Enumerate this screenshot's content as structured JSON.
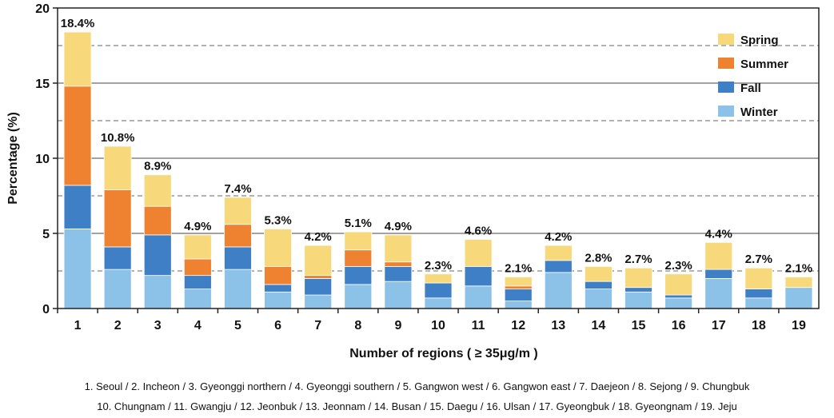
{
  "chart_data": {
    "type": "bar",
    "stacked": true,
    "xlabel": "Number of regions ( ≥ 35μg/m  )",
    "ylabel": "Percentage (%)",
    "ylim": [
      0,
      20
    ],
    "yticks": [
      0,
      5,
      10,
      15,
      20
    ],
    "grid": "horizontal",
    "legend_position": "top-right",
    "categories": [
      "1",
      "2",
      "3",
      "4",
      "5",
      "6",
      "7",
      "8",
      "9",
      "10",
      "11",
      "12",
      "13",
      "14",
      "15",
      "16",
      "17",
      "18",
      "19"
    ],
    "total_labels": [
      "18.4%",
      "10.8%",
      "8.9%",
      "4.9%",
      "7.4%",
      "5.3%",
      "4.2%",
      "5.1%",
      "4.9%",
      "2.3%",
      "4.6%",
      "2.1%",
      "4.2%",
      "2.8%",
      "2.7%",
      "2.3%",
      "4.4%",
      "2.7%",
      "2.1%"
    ],
    "series": [
      {
        "name": "Winter",
        "color": "#8dc2e8",
        "values": [
          5.3,
          2.6,
          2.2,
          1.3,
          2.6,
          1.1,
          0.9,
          1.6,
          1.8,
          0.7,
          1.5,
          0.5,
          2.4,
          1.3,
          1.1,
          0.7,
          2.0,
          0.7,
          1.4
        ]
      },
      {
        "name": "Fall",
        "color": "#3f7fc6",
        "values": [
          2.9,
          1.5,
          2.7,
          0.9,
          1.5,
          0.5,
          1.1,
          1.2,
          1.0,
          1.0,
          1.3,
          0.8,
          0.8,
          0.5,
          0.3,
          0.2,
          0.6,
          0.6,
          0.0
        ]
      },
      {
        "name": "Summer",
        "color": "#ee8231",
        "values": [
          6.6,
          3.8,
          1.9,
          1.1,
          1.5,
          1.2,
          0.2,
          1.1,
          0.3,
          0.0,
          0.0,
          0.2,
          0.0,
          0.0,
          0.0,
          0.0,
          0.0,
          0.0,
          0.0
        ]
      },
      {
        "name": "Spring",
        "color": "#f7d97b",
        "values": [
          3.6,
          2.9,
          2.1,
          1.6,
          1.8,
          2.5,
          2.0,
          1.2,
          1.8,
          0.6,
          1.8,
          0.6,
          1.0,
          1.0,
          1.3,
          1.4,
          1.8,
          1.4,
          0.7
        ]
      }
    ],
    "legend_order": [
      "Spring",
      "Summer",
      "Fall",
      "Winter"
    ]
  },
  "caption": {
    "line1": "1. Seoul / 2. Incheon / 3. Gyeonggi northern / 4. Gyeonggi southern / 5. Gangwon west / 6. Gangwon east / 7. Daejeon / 8. Sejong / 9. Chungbuk",
    "line2": "10. Chungnam / 11. Gwangju / 12. Jeonbuk / 13. Jeonnam / 14. Busan / 15. Daegu / 16. Ulsan / 17. Gyeongbuk / 18. Gyeongnam / 19. Jeju"
  }
}
